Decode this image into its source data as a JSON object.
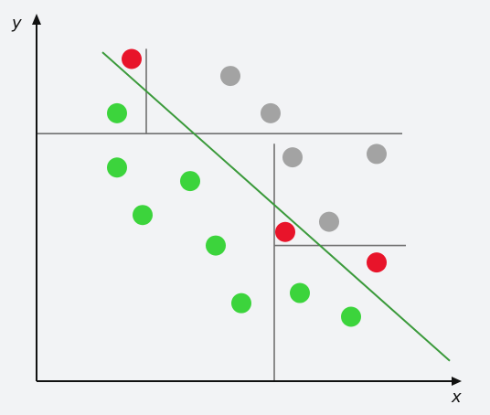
{
  "diagram": {
    "axis_labels": {
      "x": "x",
      "y": "y"
    },
    "colors": {
      "axis": "#111111",
      "split": "#707070",
      "boundary": "#3b9a3b",
      "green": "#3cd43c",
      "red": "#e8142a",
      "gray": "#a3a3a3",
      "background": "#f2f3f5"
    },
    "points": [
      {
        "class": "red",
        "x": 2.6,
        "y": 9.5
      },
      {
        "class": "gray",
        "x": 5.3,
        "y": 9.0
      },
      {
        "class": "green",
        "x": 2.2,
        "y": 7.9
      },
      {
        "class": "gray",
        "x": 6.4,
        "y": 7.9
      },
      {
        "class": "gray",
        "x": 7.0,
        "y": 6.6
      },
      {
        "class": "gray",
        "x": 9.3,
        "y": 6.7
      },
      {
        "class": "green",
        "x": 2.2,
        "y": 6.3
      },
      {
        "class": "green",
        "x": 4.2,
        "y": 5.9
      },
      {
        "class": "green",
        "x": 2.9,
        "y": 4.9
      },
      {
        "class": "gray",
        "x": 8.0,
        "y": 4.7
      },
      {
        "class": "red",
        "x": 6.8,
        "y": 4.4
      },
      {
        "class": "green",
        "x": 4.9,
        "y": 4.0
      },
      {
        "class": "red",
        "x": 9.3,
        "y": 3.5
      },
      {
        "class": "green",
        "x": 7.2,
        "y": 2.6
      },
      {
        "class": "green",
        "x": 5.6,
        "y": 2.3
      },
      {
        "class": "green",
        "x": 8.6,
        "y": 1.9
      }
    ],
    "split_lines": [
      {
        "orientation": "vertical",
        "at": 3.0,
        "from": 7.3,
        "to": 9.8
      },
      {
        "orientation": "horizontal",
        "at": 7.3,
        "from": 0,
        "to": 10.0
      },
      {
        "orientation": "vertical",
        "at": 6.5,
        "from": 0,
        "to": 7.0
      },
      {
        "orientation": "horizontal",
        "at": 4.0,
        "from": 6.5,
        "to": 10.1
      }
    ],
    "boundary_line": {
      "from": [
        1.8,
        9.7
      ],
      "to": [
        11.3,
        0.6
      ]
    },
    "x_range": [
      0,
      12.3
    ],
    "y_range": [
      0,
      10.7
    ]
  }
}
